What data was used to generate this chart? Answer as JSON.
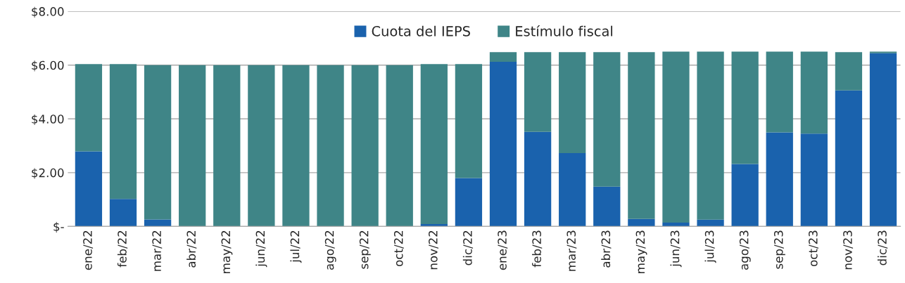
{
  "chart_data": {
    "type": "bar",
    "stacked": true,
    "categories": [
      "ene/22",
      "feb/22",
      "mar/22",
      "abr/22",
      "may/22",
      "jun/22",
      "jul/22",
      "ago/22",
      "sep/22",
      "oct/22",
      "nov/22",
      "dic/22",
      "ene/23",
      "feb/23",
      "mar/23",
      "abr/23",
      "may/23",
      "jun/23",
      "jul/23",
      "ago/23",
      "sep/23",
      "oct/23",
      "nov/23",
      "dic/23"
    ],
    "series": [
      {
        "name": "Cuota del IEPS",
        "color": "#1a62ad",
        "values": [
          2.79,
          1.02,
          0.26,
          0,
          0,
          0,
          0,
          0,
          0,
          0,
          0.09,
          1.8,
          6.12,
          3.52,
          2.73,
          1.48,
          0.28,
          0.14,
          0.25,
          2.32,
          3.5,
          3.45,
          5.06,
          6.44
        ]
      },
      {
        "name": "Estímulo fiscal",
        "color": "#3f8587",
        "values": [
          3.25,
          5.02,
          5.74,
          6.0,
          6.0,
          6.0,
          6.0,
          6.0,
          6.0,
          6.0,
          5.95,
          4.24,
          0.36,
          2.96,
          3.75,
          5.0,
          6.2,
          6.36,
          6.25,
          4.18,
          3.0,
          3.05,
          1.42,
          0.06
        ]
      }
    ],
    "ylim": [
      0,
      8
    ],
    "yticks": [
      {
        "value": 0,
        "label": "$-"
      },
      {
        "value": 2,
        "label": "$2.00"
      },
      {
        "value": 4,
        "label": "$4.00"
      },
      {
        "value": 6,
        "label": "$6.00"
      },
      {
        "value": 8,
        "label": "$8.00"
      }
    ],
    "grid": "y",
    "legend": "top"
  }
}
